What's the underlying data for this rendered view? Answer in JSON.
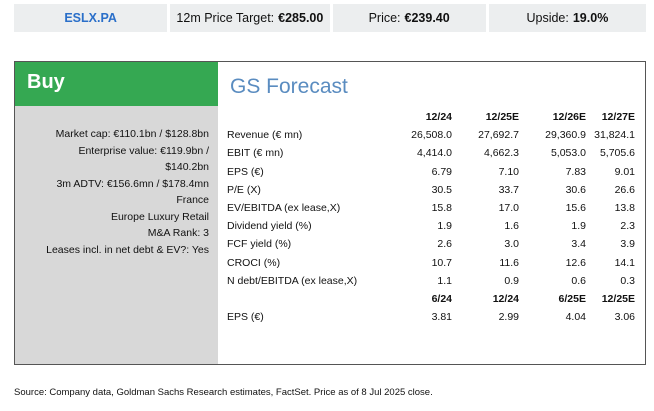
{
  "header": {
    "ticker": "ESLX.PA",
    "target_label": "12m Price Target:",
    "target_value": "€285.00",
    "price_label": "Price:",
    "price_value": "€239.40",
    "upside_label": "Upside:",
    "upside_value": "19.0%"
  },
  "rating": "Buy",
  "forecast_title": "GS Forecast",
  "company_info": [
    "Market cap: €110.1bn / $128.8bn",
    "Enterprise value: €119.9bn /",
    "$140.2bn",
    "3m ADTV: €156.6mn / $178.4mn",
    "France",
    "Europe Luxury Retail",
    "M&A Rank: 3",
    "Leases incl. in net debt & EV?: Yes"
  ],
  "annual_table": {
    "columns": [
      "12/24",
      "12/25E",
      "12/26E",
      "12/27E"
    ],
    "rows": [
      {
        "label": "Revenue (€ mn)",
        "values": [
          "26,508.0",
          "27,692.7",
          "29,360.9",
          "31,824.1"
        ]
      },
      {
        "label": "EBIT (€ mn)",
        "values": [
          "4,414.0",
          "4,662.3",
          "5,053.0",
          "5,705.6"
        ]
      },
      {
        "label": "EPS (€)",
        "values": [
          "6.79",
          "7.10",
          "7.83",
          "9.01"
        ]
      },
      {
        "label": "P/E (X)",
        "values": [
          "30.5",
          "33.7",
          "30.6",
          "26.6"
        ]
      },
      {
        "label": "EV/EBITDA (ex lease,X)",
        "values": [
          "15.8",
          "17.0",
          "15.6",
          "13.8"
        ]
      },
      {
        "label": "Dividend yield (%)",
        "values": [
          "1.9",
          "1.6",
          "1.9",
          "2.3"
        ]
      },
      {
        "label": "FCF yield (%)",
        "values": [
          "2.6",
          "3.0",
          "3.4",
          "3.9"
        ]
      },
      {
        "label": "CROCI (%)",
        "values": [
          "10.7",
          "11.6",
          "12.6",
          "14.1"
        ]
      },
      {
        "label": "N debt/EBITDA (ex lease,X)",
        "values": [
          "1.1",
          "0.9",
          "0.6",
          "0.3"
        ]
      }
    ]
  },
  "semiannual_table": {
    "columns": [
      "6/24",
      "12/24",
      "6/25E",
      "12/25E"
    ],
    "rows": [
      {
        "label": "EPS (€)",
        "values": [
          "3.81",
          "2.99",
          "4.04",
          "3.06"
        ]
      }
    ]
  },
  "source_note": "Source: Company data, Goldman Sachs Research estimates, FactSet. Price as of 8 Jul 2025 close."
}
